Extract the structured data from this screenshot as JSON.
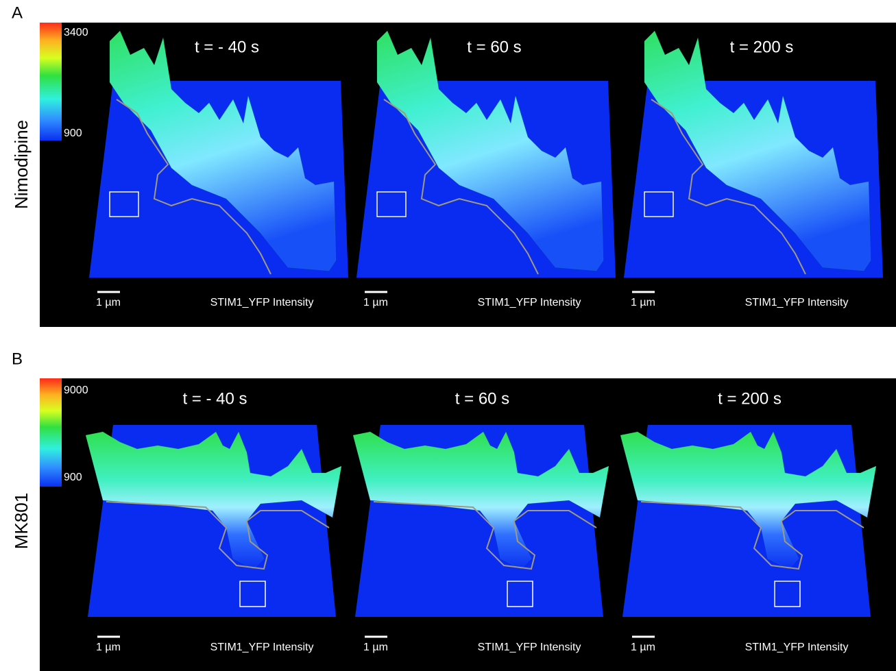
{
  "panels": [
    {
      "label": "A",
      "condition": "Nimodipine",
      "colorbar": {
        "max": 3400,
        "min": 900
      },
      "frames": [
        {
          "time": "t = - 40 s",
          "scale": "1 µm",
          "channel": "STIM1_YFP Intensity"
        },
        {
          "time": "t = 60 s",
          "scale": "1 µm",
          "channel": "STIM1_YFP Intensity"
        },
        {
          "time": "t = 200 s",
          "scale": "1 µm",
          "channel": "STIM1_YFP Intensity"
        }
      ]
    },
    {
      "label": "B",
      "condition": "MK801",
      "colorbar": {
        "max": 9000,
        "min": 900
      },
      "frames": [
        {
          "time": "t = - 40 s",
          "scale": "1 µm",
          "channel": "STIM1_YFP Intensity"
        },
        {
          "time": "t = 60 s",
          "scale": "1 µm",
          "channel": "STIM1_YFP Intensity"
        },
        {
          "time": "t = 200 s",
          "scale": "1 µm",
          "channel": "STIM1_YFP Intensity"
        }
      ]
    }
  ]
}
